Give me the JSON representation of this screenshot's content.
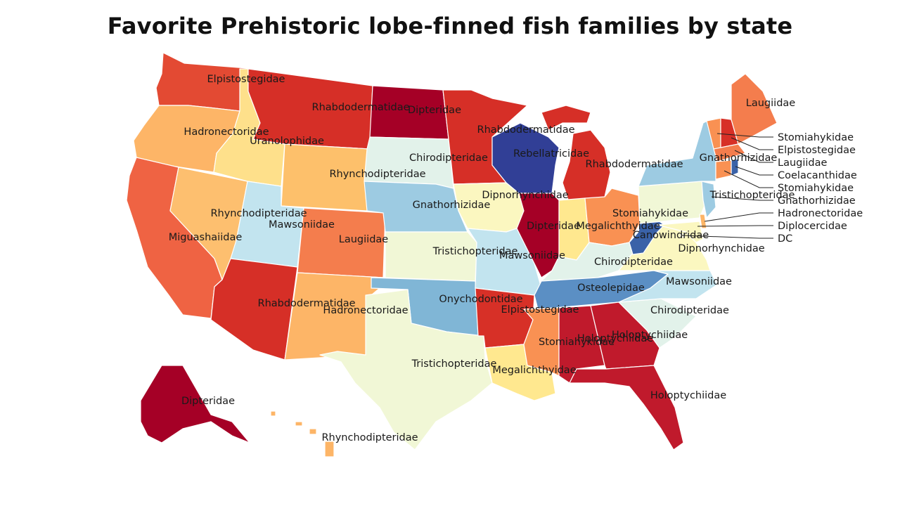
{
  "title": "Favorite Prehistoric lobe-finned fish families by state",
  "legend_colors": {
    "Dipteridae": "#a50026",
    "Holoptychiidae": "#c01a2c",
    "Rhabdodermatidae": "#d62f27",
    "Elpistostegidae": "#d73027",
    "Laugiidae": "#f47d4d",
    "Stomiahykidae": "#f99153",
    "Hadronectoridae": "#fdb567",
    "Uranolophidae": "#fee08b",
    "Megalichthyidae": "#ffe88f",
    "Dipnorhynchidae": "#fbf7c0",
    "Tristichopteridae": "#f1f7d6",
    "Chirodipteridae": "#e2f2ea",
    "Mawsoniidae": "#c2e4ef",
    "Rhynchodipteridae": "#fdbf6f",
    "Gnathorhizidae": "#9dcbe2",
    "Onychodontidae": "#80b6d6",
    "Osteolepidae": "#5b8fc4",
    "Canowindridae": "#3a62a8",
    "Rebellatricidae": "#313f96",
    "Miguashaiidae": "#ef6343"
  },
  "states": [
    {
      "name": "WA",
      "label": "Elpistostegidae",
      "color": "#e34a33"
    },
    {
      "name": "OR",
      "label": "Hadronectoridae",
      "color": "#fdb567"
    },
    {
      "name": "CA",
      "label": "Miguashaiidae",
      "color": "#ef6343"
    },
    {
      "name": "NV",
      "label": "Rhynchodipteridae",
      "color": "#fdbf6f"
    },
    {
      "name": "ID",
      "label": "Uranolophidae",
      "color": "#fee08b"
    },
    {
      "name": "MT",
      "label": "Rhabdodermatidae",
      "color": "#d62f27"
    },
    {
      "name": "WY",
      "label": "Rhynchodipteridae",
      "color": "#fdc06b"
    },
    {
      "name": "UT",
      "label": "Mawsoniidae",
      "color": "#c2e4ef"
    },
    {
      "name": "AZ",
      "label": "Rhabdodermatidae",
      "color": "#d62f27"
    },
    {
      "name": "CO",
      "label": "Laugiidae",
      "color": "#f47d4d"
    },
    {
      "name": "NM",
      "label": "Hadronectoridae",
      "color": "#fdb567"
    },
    {
      "name": "ND",
      "label": "Dipteridae",
      "color": "#a50026"
    },
    {
      "name": "SD",
      "label": "Chirodipteridae",
      "color": "#e2f2ea"
    },
    {
      "name": "NE",
      "label": "Gnathorhizidae",
      "color": "#9dcbe2"
    },
    {
      "name": "KS",
      "label": "Tristichopteridae",
      "color": "#f1f7d6"
    },
    {
      "name": "OK",
      "label": "Onychodontidae",
      "color": "#80b6d6"
    },
    {
      "name": "TX",
      "label": "Tristichopteridae",
      "color": "#f1f7d6"
    },
    {
      "name": "MN",
      "label": "Rhabdodermatidae",
      "color": "#d62f27"
    },
    {
      "name": "IA",
      "label": "Dipnorhynchidae",
      "color": "#fbf7c0"
    },
    {
      "name": "MO",
      "label": "Mawsoniidae",
      "color": "#c2e4ef"
    },
    {
      "name": "AR",
      "label": "Elpistostegidae",
      "color": "#d73027"
    },
    {
      "name": "LA",
      "label": "Megalichthyidae",
      "color": "#ffe88f"
    },
    {
      "name": "WI",
      "label": "Rebellatricidae",
      "color": "#313f96"
    },
    {
      "name": "IL",
      "label": "Dipteridae",
      "color": "#a50026"
    },
    {
      "name": "MI",
      "label": "Rhabdodermatidae",
      "color": "#d62f27"
    },
    {
      "name": "IN",
      "label": "Megalichthyidae",
      "color": "#ffe88f"
    },
    {
      "name": "OH",
      "label": "Stomiahykidae",
      "color": "#f99153"
    },
    {
      "name": "KY",
      "label": "Chirodipteridae",
      "color": "#e2f2ea"
    },
    {
      "name": "TN",
      "label": "Osteolepidae",
      "color": "#5b8fc4"
    },
    {
      "name": "MS",
      "label": "Stomiahykidae",
      "color": "#f99153"
    },
    {
      "name": "AL",
      "label": "Holoptychiidae",
      "color": "#c01a2c"
    },
    {
      "name": "GA",
      "label": "Holoptychiidae",
      "color": "#c01a2c"
    },
    {
      "name": "FL",
      "label": "Holoptychiidae",
      "color": "#c01a2c"
    },
    {
      "name": "SC",
      "label": "Chirodipteridae",
      "color": "#e2f2ea"
    },
    {
      "name": "NC",
      "label": "Mawsoniidae",
      "color": "#c2e4ef"
    },
    {
      "name": "VA",
      "label": "Dipnorhynchidae",
      "color": "#fbf7c0"
    },
    {
      "name": "WV",
      "label": "Canowindridae",
      "color": "#3a62a8"
    },
    {
      "name": "PA",
      "label": "Tristichopteridae",
      "color": "#f1f7d6"
    },
    {
      "name": "NY",
      "label": "Gnathorhizidae",
      "color": "#9dcbe2"
    },
    {
      "name": "VT",
      "label": "Stomiahykidae",
      "color": "#f99153"
    },
    {
      "name": "NH",
      "label": "Elpistostegidae",
      "color": "#d73027"
    },
    {
      "name": "ME",
      "label": "Laugiidae",
      "color": "#f47d4d"
    },
    {
      "name": "MA",
      "label": "Laugiidae",
      "color": "#f47d4d"
    },
    {
      "name": "RI",
      "label": "Coelacanthidae",
      "color": "#3a62a8"
    },
    {
      "name": "CT",
      "label": "Stomiahykidae",
      "color": "#f99153"
    },
    {
      "name": "NJ",
      "label": "Gnathorhizidae",
      "color": "#9dcbe2"
    },
    {
      "name": "DE",
      "label": "Hadronectoridae",
      "color": "#fdb567"
    },
    {
      "name": "MD",
      "label": "Diplocercidae",
      "color": "#fbf7c0"
    },
    {
      "name": "DC",
      "label": "DC",
      "color": "#fbf7c0"
    },
    {
      "name": "AK",
      "label": "Dipteridae",
      "color": "#a50026"
    },
    {
      "name": "HI",
      "label": "Rhynchodipteridae",
      "color": "#fdb567"
    }
  ],
  "callouts": [
    {
      "state": "VT",
      "label": "Stomiahykidae"
    },
    {
      "state": "NH",
      "label": "Elpistostegidae"
    },
    {
      "state": "MA",
      "label": "Laugiidae"
    },
    {
      "state": "RI",
      "label": "Coelacanthidae"
    },
    {
      "state": "CT",
      "label": "Stomiahykidae"
    },
    {
      "state": "NJ",
      "label": "Gnathorhizidae"
    },
    {
      "state": "DE",
      "label": "Hadronectoridae"
    },
    {
      "state": "MD",
      "label": "Diplocercidae"
    },
    {
      "state": "DC",
      "label": "DC"
    }
  ]
}
